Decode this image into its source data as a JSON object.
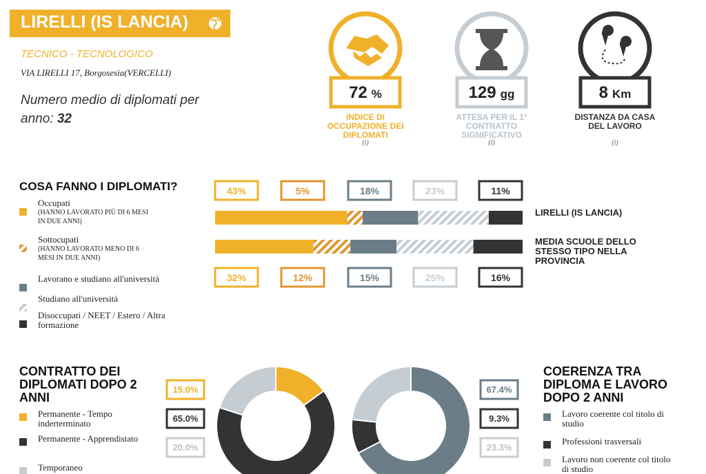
{
  "header": {
    "school": "LIRELLI (IS LANCIA)",
    "type": "TECNICO - TECNOLOGICO",
    "address": "VIA LIRELLI 17, Borgosesia(VERCELLI)",
    "graduates_label": "Numero medio di diplomati per anno:",
    "graduates": 32
  },
  "indicators": [
    {
      "value": 72,
      "unit": "%",
      "label": "INDICE DI OCCUPAZIONE DEI DIPLOMATI",
      "note": "(i)",
      "color": "#f0b02a"
    },
    {
      "value": 129,
      "unit": "gg",
      "label": "ATTESA PER IL 1° CONTRATTO SIGNIFICATIVO",
      "note": "(i)",
      "color": "#c5cdd3"
    },
    {
      "value": 8,
      "unit": "Km",
      "label": "DISTANZA DA CASA DEL LAVORO",
      "note": "(i)",
      "color": "#333333"
    }
  ],
  "chart_data": [
    {
      "type": "stacked-bar",
      "title": "COSA FANNO I DIPLOMATI?",
      "categories": [
        "LIRELLI (IS LANCIA)",
        "MEDIA SCUOLE DELLO STESSO TIPO NELLA PROVINCIA"
      ],
      "xlim": [
        0,
        100
      ],
      "series": [
        {
          "name": "Occupati",
          "note": "(HANNO LAVORATO PIÙ DI 6 MESI IN DUE ANNI)",
          "color": "#f0b02a",
          "pattern": "solid",
          "values": [
            43,
            32
          ],
          "value_labels": [
            "43%",
            "32%"
          ]
        },
        {
          "name": "Sottocupati",
          "note": "(HANNO LAVORATO MENO DI 6 MESI IN DUE ANNI)",
          "color": "#e0962e",
          "pattern": "hatch",
          "values": [
            5,
            12
          ],
          "value_labels": [
            "5%",
            "12%"
          ]
        },
        {
          "name": "Lavorano e studiano all'università",
          "color": "#6b7d87",
          "pattern": "solid",
          "values": [
            18,
            15
          ],
          "value_labels": [
            "18%",
            "15%"
          ]
        },
        {
          "name": "Studiano all'università",
          "color": "#c5cdd3",
          "pattern": "hatch",
          "values": [
            23,
            25
          ],
          "value_labels": [
            "23%",
            "25%"
          ]
        },
        {
          "name": "Disoccupati / NEET / Estero / Altra formazione",
          "color": "#333333",
          "pattern": "solid",
          "values": [
            11,
            16
          ],
          "value_labels": [
            "11%",
            "16%"
          ]
        }
      ]
    },
    {
      "type": "donut",
      "title": "CONTRATTO DEI DIPLOMATI DOPO 2 ANNI",
      "categories": [
        "Permanente - Tempo inderterminato",
        "Permanente - Apprendistato",
        "Temporaneo"
      ],
      "values": [
        15.0,
        65.0,
        20.0
      ],
      "value_labels": [
        "15.0%",
        "65.0%",
        "20.0%"
      ],
      "colors": [
        "#f0b02a",
        "#333333",
        "#c5cdd3"
      ]
    },
    {
      "type": "donut",
      "title": "COERENZA TRA DIPLOMA E LAVORO DOPO 2 ANNI",
      "categories": [
        "Lavoro coerente col titolo di studio",
        "Professioni trasversali",
        "Lavoro non coerente col titolo di studio"
      ],
      "values": [
        67.4,
        9.3,
        23.3
      ],
      "value_labels": [
        "67.4%",
        "9.3%",
        "23.3%"
      ],
      "colors": [
        "#6b7d87",
        "#333333",
        "#c5cdd3"
      ]
    }
  ]
}
